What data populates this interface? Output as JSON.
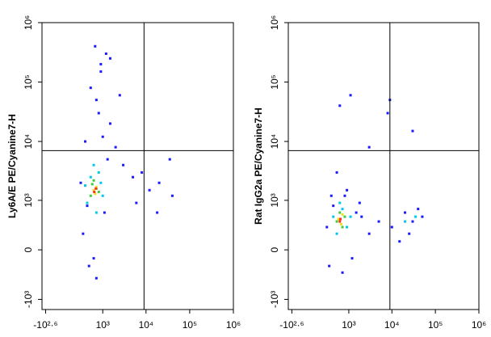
{
  "chart_data": [
    {
      "type": "scatter",
      "ylabel": "Ly6A/E PE/Cyanine7-H",
      "scale": "biexponential",
      "xlim": [
        -500,
        1000000
      ],
      "ylim": [
        -1500,
        1000000
      ],
      "xticks": [
        {
          "value": -398,
          "label": "-10²·⁶"
        },
        {
          "value": 1000,
          "label": "10³"
        },
        {
          "value": 10000,
          "label": "10⁴"
        },
        {
          "value": 100000,
          "label": "10⁵"
        },
        {
          "value": 1000000,
          "label": "10⁶"
        }
      ],
      "yticks": [
        {
          "value": -1000,
          "label": "-10³"
        },
        0,
        {
          "value": 1000,
          "label": "10³"
        },
        {
          "value": 10000,
          "label": "10⁴"
        },
        {
          "value": 100000,
          "label": "10⁵"
        },
        {
          "value": 1000000,
          "label": "10⁶"
        }
      ],
      "gates": {
        "x": 9000,
        "y": 7000
      },
      "series": [
        {
          "color": "#1a1aff",
          "x": [
            300,
            450,
            700,
            900,
            1200,
            1500,
            2000,
            3000,
            5000,
            8000,
            12000,
            20000,
            35000,
            500,
            800,
            1000,
            600,
            400,
            700,
            1100,
            1500,
            2500,
            250,
            350,
            900,
            1300,
            18000,
            40000,
            6000,
            650
          ],
          "y": [
            200,
            -200,
            50000,
            150000,
            300000,
            20000,
            8000,
            4000,
            2500,
            3000,
            1500,
            2000,
            5000,
            80000,
            30000,
            12000,
            -100,
            800,
            -400,
            600,
            250000,
            60000,
            2000,
            10000,
            200000,
            5000,
            600,
            1200,
            900,
            400000
          ]
        },
        {
          "color": "#00c8e6",
          "x": [
            400,
            500,
            800,
            1000,
            600,
            700,
            350,
            900
          ],
          "y": [
            900,
            2500,
            3000,
            1200,
            4000,
            600,
            1800,
            2000
          ]
        },
        {
          "color": "#3ccc3c",
          "x": [
            500,
            700,
            600,
            800,
            550
          ],
          "y": [
            1200,
            1600,
            2200,
            1400,
            1900
          ]
        },
        {
          "color": "#f0e020",
          "x": [
            600,
            650,
            700
          ],
          "y": [
            1500,
            1300,
            1700
          ]
        },
        {
          "color": "#ff3010",
          "x": [
            620,
            680
          ],
          "y": [
            1400,
            1600
          ]
        }
      ]
    },
    {
      "type": "scatter",
      "ylabel": "Rat IgG2a PE/Cyanine7-H",
      "scale": "biexponential",
      "xlim": [
        -500,
        1000000
      ],
      "ylim": [
        -1500,
        1000000
      ],
      "xticks": [
        {
          "value": -398,
          "label": "-10²·⁶"
        },
        {
          "value": 1000,
          "label": "10³"
        },
        {
          "value": 10000,
          "label": "10⁴"
        },
        {
          "value": 100000,
          "label": "10⁵"
        },
        {
          "value": 1000000,
          "label": "10⁶"
        }
      ],
      "yticks": [
        {
          "value": -1000,
          "label": "-10³"
        },
        0,
        {
          "value": 1000,
          "label": "10³"
        },
        {
          "value": 10000,
          "label": "10⁴"
        },
        {
          "value": 100000,
          "label": "10⁵"
        },
        {
          "value": 1000000,
          "label": "10⁶"
        }
      ],
      "gates": {
        "x": 9000,
        "y": 7000
      },
      "series": [
        {
          "color": "#1a1aff",
          "x": [
            250,
            300,
            400,
            800,
            1200,
            1500,
            2000,
            3000,
            5000,
            10000,
            20000,
            30000,
            40000,
            50000,
            700,
            900,
            350,
            1800,
            15000,
            25000,
            600,
            1100,
            8000,
            30000,
            500,
            3000,
            9000
          ],
          "y": [
            300,
            -200,
            800,
            1200,
            -100,
            600,
            500,
            200,
            400,
            300,
            600,
            400,
            700,
            500,
            -300,
            1500,
            1200,
            900,
            100,
            200,
            40000,
            60000,
            30000,
            15000,
            3000,
            8000,
            50000
          ]
        },
        {
          "color": "#00c8e6",
          "x": [
            400,
            500,
            700,
            900,
            1100,
            600,
            20000,
            35000
          ],
          "y": [
            500,
            200,
            700,
            300,
            500,
            900,
            400,
            500
          ]
        },
        {
          "color": "#3ccc3c",
          "x": [
            500,
            600,
            700,
            800
          ],
          "y": [
            400,
            600,
            300,
            500
          ]
        },
        {
          "color": "#f0e020",
          "x": [
            550,
            650,
            700
          ],
          "y": [
            450,
            350,
            550
          ]
        },
        {
          "color": "#ff3010",
          "x": [
            600,
            620
          ],
          "y": [
            400,
            450
          ]
        }
      ]
    }
  ]
}
